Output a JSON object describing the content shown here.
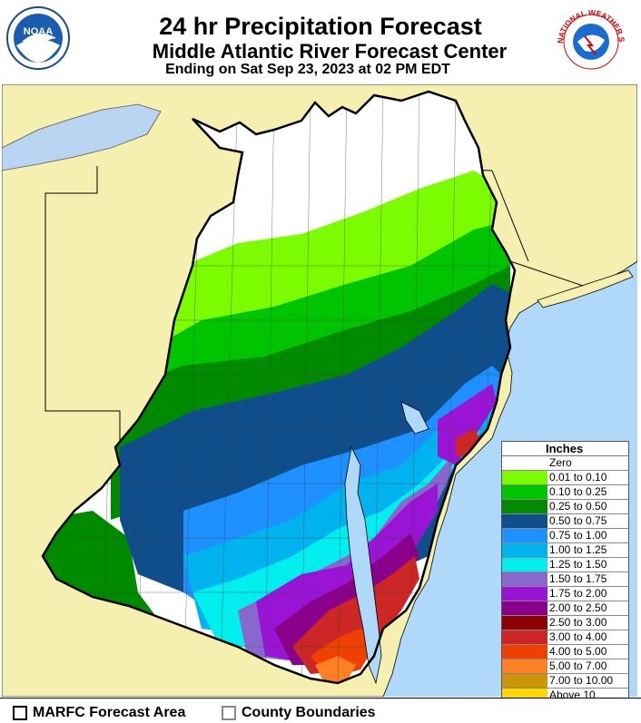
{
  "header": {
    "title": "24 hr Precipitation Forecast",
    "subtitle": "Middle Atlantic River Forecast Center",
    "valid": "Ending on Sat Sep 23, 2023 at 02 PM EDT",
    "noaa_logo_text": "NOAA",
    "nws_logo_text": "NATIONAL WEATHER SERVICE",
    "noaa_logo_icon": "noaa-logo-icon",
    "nws_logo_icon": "nws-logo-icon"
  },
  "legend": {
    "title": "Inches",
    "items": [
      {
        "label": "Zero",
        "color": "#ffffff"
      },
      {
        "label": "0.01 to 0.10",
        "color": "#7cfc00"
      },
      {
        "label": "0.10 to 0.25",
        "color": "#00c400"
      },
      {
        "label": "0.25 to 0.50",
        "color": "#008a00"
      },
      {
        "label": "0.50 to 0.75",
        "color": "#104e8b"
      },
      {
        "label": "0.75 to 1.00",
        "color": "#1e90ff"
      },
      {
        "label": "1.00 to 1.25",
        "color": "#00b2ee"
      },
      {
        "label": "1.25 to 1.50",
        "color": "#00eeee"
      },
      {
        "label": "1.50 to 1.75",
        "color": "#8968cd"
      },
      {
        "label": "1.75 to 2.00",
        "color": "#9a14d6"
      },
      {
        "label": "2.00 to 2.50",
        "color": "#8b008b"
      },
      {
        "label": "2.50 to 3.00",
        "color": "#8b0000"
      },
      {
        "label": "3.00 to 4.00",
        "color": "#cd2626"
      },
      {
        "label": "4.00 to 5.00",
        "color": "#ee4000"
      },
      {
        "label": "5.00 to 7.00",
        "color": "#ff7f24"
      },
      {
        "label": "7.00 to 10.00",
        "color": "#cd950c"
      },
      {
        "label": "Above 10",
        "color": "#ffd700"
      }
    ]
  },
  "footer": {
    "forecast_area": "MARFC Forecast Area",
    "county_boundaries": "County Boundaries"
  },
  "map_colors": {
    "land_outside": "#f5f0b0",
    "water": "#b0d8f8",
    "lake": "#b8d4f0"
  }
}
